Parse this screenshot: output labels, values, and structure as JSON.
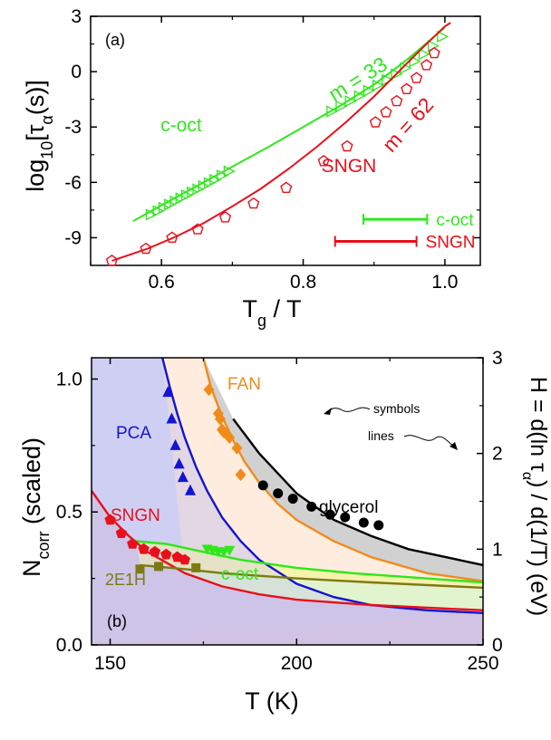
{
  "colors": {
    "red": "#e8101a",
    "green": "#2ee81a",
    "blue": "#1414d2",
    "orange": "#f28a1a",
    "black": "#000000",
    "olive": "#7d7a12"
  },
  "chart_data": [
    {
      "type": "line",
      "panel_label": "(a)",
      "xlabel": "T_g / T",
      "ylabel": "log10[τ_α(s)]",
      "xlim": [
        0.5,
        1.05
      ],
      "ylim": [
        -10.5,
        3
      ],
      "x_ticks": [
        "0.6",
        "0.8",
        "1.0"
      ],
      "y_ticks": [
        "3",
        "0",
        "-3",
        "-6",
        "-9"
      ],
      "series": [
        {
          "name": "c-oct",
          "color": "#2ee81a",
          "marker": "open-triangle-right",
          "fit": {
            "x": [
              0.56,
              0.6,
              0.65,
              0.7,
              0.75,
              0.8,
              0.85,
              0.9,
              0.95,
              1.0
            ],
            "y": [
              -8.1,
              -7.25,
              -6.2,
              -5.15,
              -4.1,
              -3.0,
              -1.9,
              -0.7,
              0.75,
              2.4
            ]
          },
          "points": {
            "x": [
              0.585,
              0.595,
              0.603,
              0.611,
              0.619,
              0.627,
              0.635,
              0.643,
              0.651,
              0.659,
              0.667,
              0.675,
              0.685,
              0.695,
              0.84,
              0.853,
              0.866,
              0.879,
              0.892,
              0.905,
              0.918,
              0.931,
              0.944,
              0.957,
              0.97,
              0.983,
              0.996
            ],
            "y": [
              -7.75,
              -7.55,
              -7.37,
              -7.2,
              -7.03,
              -6.86,
              -6.7,
              -6.53,
              -6.37,
              -6.2,
              -6.03,
              -5.86,
              -5.63,
              -5.4,
              -2.15,
              -1.88,
              -1.6,
              -1.32,
              -1.03,
              -0.74,
              -0.44,
              -0.13,
              0.2,
              0.56,
              0.95,
              1.4,
              1.9
            ]
          }
        },
        {
          "name": "SNGN",
          "color": "#e8101a",
          "marker": "open-pentagon",
          "fit": {
            "x": [
              0.53,
              0.58,
              0.62,
              0.66,
              0.7,
              0.74,
              0.78,
              0.82,
              0.86,
              0.9,
              0.94,
              0.97,
              1.0,
              1.008
            ],
            "y": [
              -10.25,
              -9.6,
              -8.95,
              -8.2,
              -7.3,
              -6.35,
              -5.25,
              -4.05,
              -2.75,
              -1.35,
              0.2,
              1.35,
              2.45,
              2.65
            ]
          },
          "points": {
            "x": [
              0.53,
              0.578,
              0.615,
              0.651,
              0.69,
              0.73,
              0.776,
              0.829,
              0.862,
              0.902,
              0.917,
              0.932,
              0.946,
              0.96,
              0.974,
              0.985
            ],
            "y": [
              -10.25,
              -9.6,
              -9.0,
              -8.55,
              -7.9,
              -7.15,
              -6.3,
              -4.85,
              -4.05,
              -2.75,
              -2.2,
              -1.6,
              -0.95,
              -0.35,
              0.35,
              1.0
            ]
          }
        }
      ],
      "annotations": [
        {
          "text": "m = 33",
          "color": "#2ee81a"
        },
        {
          "text": "m = 62",
          "color": "#e8101a"
        },
        {
          "text": "c-oct",
          "color": "#2ee81a"
        },
        {
          "text": "SNGN",
          "color": "#e8101a"
        }
      ],
      "ranges": [
        {
          "label": "c-oct",
          "x": [
            0.885,
            0.975
          ],
          "y": -8.0,
          "color": "#2ee81a"
        },
        {
          "label": "SNGN",
          "x": [
            0.845,
            0.96
          ],
          "y": -9.2,
          "color": "#e8101a"
        }
      ]
    },
    {
      "type": "line",
      "panel_label": "(b)",
      "xlabel": "T (K)",
      "ylabel_left": "N_corr (scaled)",
      "ylabel_right": "H = d(ln τ_α) / d(1/T) (eV)",
      "xlim": [
        145,
        250
      ],
      "ylim_left": [
        0,
        1.08
      ],
      "ylim_right": [
        0,
        3
      ],
      "x_ticks": [
        "150",
        "200",
        "250"
      ],
      "y_ticks_left": [
        "0.0",
        "0.5",
        "1.0"
      ],
      "y_ticks_right": [
        "0",
        "1",
        "2",
        "3"
      ],
      "notes": [
        "symbols",
        "lines"
      ],
      "series": [
        {
          "name": "PCA",
          "color": "#1414d2",
          "line": {
            "x": [
              164,
              166,
              168,
              170,
              173,
              176,
              180,
              185,
              190,
              200,
              210,
              220,
              235,
              250
            ],
            "y": [
              1.08,
              0.97,
              0.87,
              0.78,
              0.67,
              0.58,
              0.48,
              0.39,
              0.32,
              0.23,
              0.18,
              0.15,
              0.13,
              0.12
            ]
          },
          "symbols": {
            "x": [
              165.5,
              166.5,
              167.5,
              168.5,
              169.5,
              171.5
            ],
            "y": [
              0.95,
              0.85,
              0.75,
              0.68,
              0.63,
              0.58
            ]
          }
        },
        {
          "name": "FAN",
          "color": "#f28a1a",
          "line": {
            "x": [
              175,
              177,
              180,
              183,
              186,
              190,
              195,
              200,
              210,
              220,
              235,
              250
            ],
            "y": [
              1.08,
              0.97,
              0.86,
              0.77,
              0.69,
              0.61,
              0.53,
              0.47,
              0.39,
              0.33,
              0.27,
              0.24
            ]
          },
          "symbols": {
            "x": [
              176.5,
              179.0,
              179.5,
              180.0,
              180.5,
              182.0,
              184.0,
              185.0
            ],
            "y": [
              0.96,
              0.87,
              0.85,
              0.81,
              0.8,
              0.78,
              0.74,
              0.64
            ]
          }
        },
        {
          "name": "glycerol",
          "color": "#000000",
          "line": {
            "x": [
              183,
              190,
              200,
              210,
              220,
              230,
              240,
              250
            ],
            "y": [
              0.85,
              0.72,
              0.57,
              0.47,
              0.41,
              0.36,
              0.33,
              0.3
            ]
          },
          "symbols": {
            "x": [
              191,
              195,
              199,
              204,
              209,
              213,
              218,
              222
            ],
            "y": [
              0.6,
              0.57,
              0.55,
              0.52,
              0.49,
              0.48,
              0.46,
              0.45
            ]
          }
        },
        {
          "name": "c-oct",
          "color": "#2ee81a",
          "line": {
            "x": [
              157,
              165,
              175,
              185,
              200,
              215,
              230,
              250
            ],
            "y": [
              0.39,
              0.38,
              0.35,
              0.32,
              0.29,
              0.27,
              0.255,
              0.235
            ]
          },
          "symbols": {
            "x": [
              176,
              177.5,
              179,
              180.5,
              182
            ],
            "y": [
              0.36,
              0.355,
              0.35,
              0.35,
              0.355
            ]
          }
        },
        {
          "name": "SNGN",
          "color": "#e8101a",
          "line": {
            "x": [
              145,
              150,
              155,
              160,
              170,
              180,
              190,
              200,
              220,
              250
            ],
            "y": [
              0.58,
              0.48,
              0.41,
              0.35,
              0.27,
              0.22,
              0.19,
              0.17,
              0.15,
              0.13
            ]
          },
          "symbols": {
            "x": [
              150,
              153,
              156,
              159,
              162,
              165,
              168,
              170
            ],
            "y": [
              0.47,
              0.42,
              0.38,
              0.36,
              0.35,
              0.34,
              0.33,
              0.32
            ]
          }
        },
        {
          "name": "2E1H",
          "color": "#7d7a12",
          "line": {
            "x": [
              158,
              170,
              180,
              200,
              220,
              250
            ],
            "y": [
              0.3,
              0.285,
              0.27,
              0.25,
              0.235,
              0.215
            ]
          },
          "symbols": {
            "x": [
              158,
              163,
              173
            ],
            "y": [
              0.285,
              0.295,
              0.29
            ]
          }
        }
      ]
    }
  ]
}
